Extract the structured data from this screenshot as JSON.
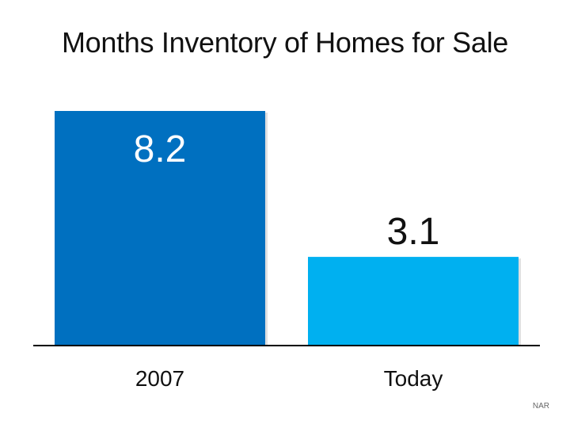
{
  "chart_data": {
    "type": "bar",
    "title": "Months Inventory of Homes for Sale",
    "xlabel": "",
    "ylabel": "",
    "categories": [
      "2007",
      "Today"
    ],
    "values": [
      8.2,
      3.1
    ],
    "data_labels": [
      "8.2",
      "3.1"
    ],
    "bar_colors": [
      "#0070c0",
      "#00b0f0"
    ],
    "label_colors": [
      "#ffffff",
      "#111111"
    ],
    "label_placement": [
      "inside",
      "above"
    ],
    "ylim": [
      0,
      8.2
    ],
    "grid": false,
    "legend": "none"
  },
  "source": "NAR"
}
